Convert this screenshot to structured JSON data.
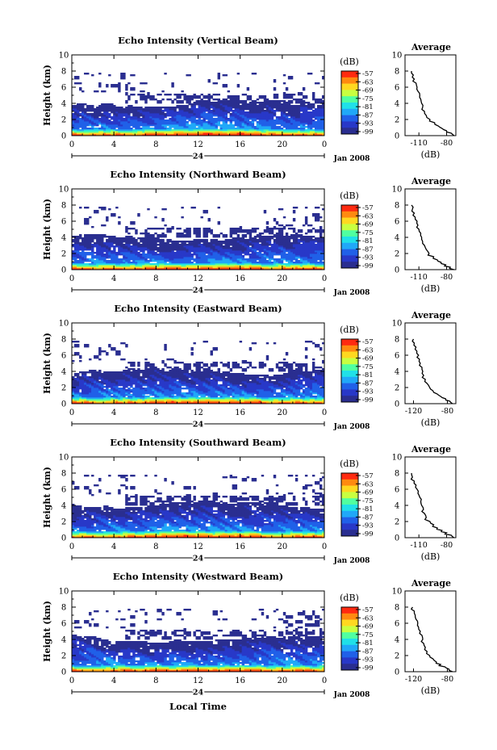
{
  "colorbar": {
    "unit_label": "(dB)",
    "ticks": [
      "-57",
      "-63",
      "-69",
      "-75",
      "-81",
      "-87",
      "-93",
      "-99"
    ],
    "colors": [
      "#ff2a10",
      "#ff8a10",
      "#ffd820",
      "#c8ff40",
      "#50ffa0",
      "#20e0e8",
      "#20a8f8",
      "#2060e8",
      "#2838c8",
      "#2a2e90"
    ]
  },
  "footer_xlabel": "Local Time",
  "chart_data": [
    {
      "type": "heatmap",
      "title": "Echo Intensity (Vertical Beam)",
      "ylabel": "Height (km)",
      "xlim": [
        0,
        24
      ],
      "ylim": [
        0,
        10
      ],
      "x_ticks": [
        "0",
        "4",
        "8",
        "12",
        "16",
        "20",
        "0"
      ],
      "y_ticks": [
        "0",
        "2",
        "4",
        "6",
        "8",
        "10"
      ],
      "day_label": "24",
      "month_label": "Jan 2008",
      "colorbar_range": [
        -99,
        -57
      ],
      "average": {
        "title": "Average",
        "xlabel": "(dB)",
        "x_ticks": [
          "-110",
          "-80"
        ],
        "xlim": [
          -125,
          -70
        ],
        "y_ticks": [
          "0",
          "2",
          "4",
          "6",
          "8",
          "10"
        ],
        "profile": [
          [
            -72,
            0
          ],
          [
            -75,
            0.3
          ],
          [
            -80,
            0.6
          ],
          [
            -85,
            0.9
          ],
          [
            -89,
            1.2
          ],
          [
            -93,
            1.6
          ],
          [
            -98,
            2
          ],
          [
            -102,
            2.5
          ],
          [
            -104,
            3
          ],
          [
            -106,
            3.5
          ],
          [
            -107,
            4
          ],
          [
            -108,
            4.5
          ],
          [
            -109,
            5
          ],
          [
            -111,
            5.5
          ],
          [
            -112,
            6
          ],
          [
            -113,
            6.5
          ],
          [
            -115,
            7
          ],
          [
            -116,
            7.5
          ],
          [
            -118,
            8
          ]
        ]
      }
    },
    {
      "type": "heatmap",
      "title": "Echo Intensity (Northward Beam)",
      "ylabel": "Height (km)",
      "xlim": [
        0,
        24
      ],
      "ylim": [
        0,
        10
      ],
      "x_ticks": [
        "0",
        "4",
        "8",
        "12",
        "16",
        "20",
        "0"
      ],
      "y_ticks": [
        "0",
        "2",
        "4",
        "6",
        "8",
        "10"
      ],
      "day_label": "24",
      "month_label": "Jan 2008",
      "colorbar_range": [
        -99,
        -57
      ],
      "average": {
        "title": "Average",
        "xlabel": "(dB)",
        "x_ticks": [
          "-110",
          "-80"
        ],
        "xlim": [
          -125,
          -70
        ],
        "y_ticks": [
          "0",
          "2",
          "4",
          "6",
          "8",
          "10"
        ],
        "profile": [
          [
            -72,
            0
          ],
          [
            -76,
            0.3
          ],
          [
            -81,
            0.6
          ],
          [
            -86,
            0.9
          ],
          [
            -90,
            1.2
          ],
          [
            -94,
            1.6
          ],
          [
            -99,
            2
          ],
          [
            -102,
            2.5
          ],
          [
            -104,
            3
          ],
          [
            -106,
            3.5
          ],
          [
            -107,
            4
          ],
          [
            -108,
            4.5
          ],
          [
            -110,
            5
          ],
          [
            -111,
            5.5
          ],
          [
            -112,
            6
          ],
          [
            -114,
            6.5
          ],
          [
            -115,
            7
          ],
          [
            -117,
            7.5
          ],
          [
            -118,
            8
          ]
        ]
      }
    },
    {
      "type": "heatmap",
      "title": "Echo Intensity (Eastward Beam)",
      "ylabel": "Height (km)",
      "xlim": [
        0,
        24
      ],
      "ylim": [
        0,
        10
      ],
      "x_ticks": [
        "0",
        "4",
        "8",
        "12",
        "16",
        "20",
        "0"
      ],
      "y_ticks": [
        "0",
        "2",
        "4",
        "6",
        "8",
        "10"
      ],
      "day_label": "24",
      "month_label": "Jan 2008",
      "colorbar_range": [
        -99,
        -57
      ],
      "average": {
        "title": "Average",
        "xlabel": "(dB)",
        "x_ticks": [
          "-120",
          "-80"
        ],
        "xlim": [
          -130,
          -70
        ],
        "y_ticks": [
          "0",
          "2",
          "4",
          "6",
          "8",
          "10"
        ],
        "profile": [
          [
            -74,
            0
          ],
          [
            -77,
            0.3
          ],
          [
            -82,
            0.6
          ],
          [
            -88,
            0.9
          ],
          [
            -92,
            1.2
          ],
          [
            -97,
            1.6
          ],
          [
            -101,
            2
          ],
          [
            -104,
            2.5
          ],
          [
            -106,
            3
          ],
          [
            -108,
            3.5
          ],
          [
            -109,
            4
          ],
          [
            -110,
            4.5
          ],
          [
            -112,
            5
          ],
          [
            -113,
            5.5
          ],
          [
            -114,
            6
          ],
          [
            -116,
            6.5
          ],
          [
            -117,
            7
          ],
          [
            -119,
            7.5
          ],
          [
            -120,
            8
          ]
        ]
      }
    },
    {
      "type": "heatmap",
      "title": "Echo Intensity (Southward Beam)",
      "ylabel": "Height (km)",
      "xlim": [
        0,
        24
      ],
      "ylim": [
        0,
        10
      ],
      "x_ticks": [
        "0",
        "4",
        "8",
        "12",
        "16",
        "20",
        "0"
      ],
      "y_ticks": [
        "0",
        "2",
        "4",
        "6",
        "8",
        "10"
      ],
      "day_label": "24",
      "month_label": "Jan 2008",
      "colorbar_range": [
        -99,
        -57
      ],
      "average": {
        "title": "Average",
        "xlabel": "(dB)",
        "x_ticks": [
          "-110",
          "-80"
        ],
        "xlim": [
          -125,
          -70
        ],
        "y_ticks": [
          "0",
          "2",
          "4",
          "6",
          "8",
          "10"
        ],
        "profile": [
          [
            -72,
            0
          ],
          [
            -75,
            0.3
          ],
          [
            -80,
            0.6
          ],
          [
            -85,
            0.9
          ],
          [
            -90,
            1.2
          ],
          [
            -94,
            1.6
          ],
          [
            -98,
            2
          ],
          [
            -102,
            2.5
          ],
          [
            -104,
            3
          ],
          [
            -105,
            3.5
          ],
          [
            -107,
            4
          ],
          [
            -108,
            4.5
          ],
          [
            -109,
            5
          ],
          [
            -111,
            5.5
          ],
          [
            -112,
            6
          ],
          [
            -113,
            6.5
          ],
          [
            -115,
            7
          ],
          [
            -117,
            7.5
          ],
          [
            -118,
            8
          ]
        ]
      }
    },
    {
      "type": "heatmap",
      "title": "Echo Intensity (Westward Beam)",
      "ylabel": "Height (km)",
      "xlim": [
        0,
        24
      ],
      "ylim": [
        0,
        10
      ],
      "x_ticks": [
        "0",
        "4",
        "8",
        "12",
        "16",
        "20",
        "0"
      ],
      "y_ticks": [
        "0",
        "2",
        "4",
        "6",
        "8",
        "10"
      ],
      "day_label": "24",
      "month_label": "Jan 2008",
      "colorbar_range": [
        -99,
        -57
      ],
      "average": {
        "title": "Average",
        "xlabel": "(dB)",
        "x_ticks": [
          "-120",
          "-80"
        ],
        "xlim": [
          -130,
          -70
        ],
        "y_ticks": [
          "0",
          "2",
          "4",
          "6",
          "8",
          "10"
        ],
        "profile": [
          [
            -74,
            0
          ],
          [
            -78,
            0.3
          ],
          [
            -83,
            0.6
          ],
          [
            -88,
            0.9
          ],
          [
            -93,
            1.2
          ],
          [
            -97,
            1.6
          ],
          [
            -101,
            2
          ],
          [
            -104,
            2.5
          ],
          [
            -106,
            3
          ],
          [
            -108,
            3.5
          ],
          [
            -109,
            4
          ],
          [
            -110,
            4.5
          ],
          [
            -112,
            5
          ],
          [
            -114,
            5.5
          ],
          [
            -115,
            6
          ],
          [
            -117,
            6.5
          ],
          [
            -118,
            7
          ],
          [
            -119,
            7.5
          ],
          [
            -121,
            8
          ]
        ]
      }
    }
  ]
}
